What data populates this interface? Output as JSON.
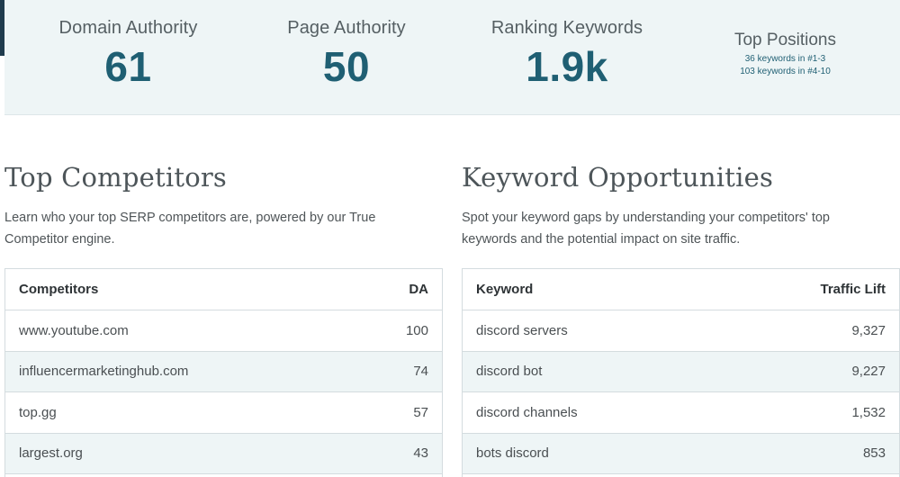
{
  "metrics": {
    "domain_authority": {
      "label": "Domain Authority",
      "value": "61"
    },
    "page_authority": {
      "label": "Page Authority",
      "value": "50"
    },
    "ranking_keywords": {
      "label": "Ranking Keywords",
      "value": "1.9k"
    },
    "top_positions": {
      "label": "Top Positions",
      "line1": "36 keywords in #1-3",
      "line2": "103 keywords in #4-10"
    }
  },
  "competitors": {
    "title": "Top Competitors",
    "description": "Learn who your top SERP competitors are, powered by our True Competitor engine.",
    "headers": {
      "name": "Competitors",
      "value": "DA"
    },
    "rows": [
      {
        "name": "www.youtube.com",
        "value": "100"
      },
      {
        "name": "influencermarketinghub.com",
        "value": "74"
      },
      {
        "name": "top.gg",
        "value": "57"
      },
      {
        "name": "largest.org",
        "value": "43"
      }
    ]
  },
  "keywords": {
    "title": "Keyword Opportunities",
    "description": "Spot your keyword gaps by understanding your competitors' top keywords and the potential impact on site traffic.",
    "headers": {
      "name": "Keyword",
      "value": "Traffic Lift"
    },
    "rows": [
      {
        "name": "discord servers",
        "value": "9,327"
      },
      {
        "name": "discord bot",
        "value": "9,227"
      },
      {
        "name": "discord channels",
        "value": "1,532"
      },
      {
        "name": "bots discord",
        "value": "853"
      }
    ]
  }
}
